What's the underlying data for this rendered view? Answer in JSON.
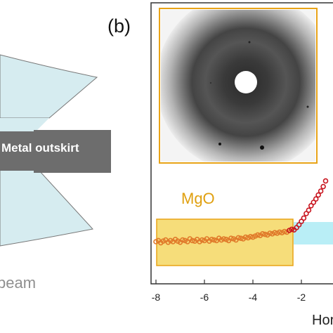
{
  "panel_label": "(b)",
  "left_panel": {
    "beam_label": "beam",
    "outskirt_label": "Metal outskirt"
  },
  "colors": {
    "beam_fill": "#d6ecf0",
    "arrow_fill": "#6d6d6d",
    "frame_color": "#e8a317",
    "mgo_box_fill": "#f3d24e",
    "mgo_label_color": "#e0a010",
    "data_early": "#e07a2a",
    "data_late": "#c8141e",
    "cyan_band": "#b9eef6"
  },
  "inset": {
    "description_icon": "diffraction-pattern-image"
  },
  "chart_data": {
    "type": "scatter",
    "xlabel": "Horiz",
    "ylabel": "",
    "xlim": [
      -8.1,
      -0.3
    ],
    "xticks": [
      -8,
      -6,
      -4,
      -2
    ],
    "tick_labels": [
      "-8",
      "-6",
      "-4",
      "-2"
    ],
    "region_label": "MgO",
    "region_x": [
      -8,
      -2.6
    ],
    "series": [
      {
        "x": [
          -8.0,
          -7.9,
          -7.8,
          -7.7,
          -7.6,
          -7.5,
          -7.4,
          -7.3,
          -7.2,
          -7.1,
          -7.0,
          -6.9,
          -6.8,
          -6.7,
          -6.6,
          -6.5,
          -6.4,
          -6.3,
          -6.2,
          -6.1,
          -6.0,
          -5.9,
          -5.8,
          -5.7,
          -5.6,
          -5.5,
          -5.4,
          -5.3,
          -5.2,
          -5.1,
          -5.0,
          -4.9,
          -4.8,
          -4.7,
          -4.6,
          -4.5,
          -4.4,
          -4.3,
          -4.2,
          -4.1,
          -4.0,
          -3.9,
          -3.8,
          -3.7,
          -3.6,
          -3.5,
          -3.4,
          -3.3,
          -3.2,
          -3.1,
          -3.0,
          -2.9,
          -2.8,
          -2.7,
          -2.6,
          -2.5,
          -2.4,
          -2.3,
          -2.2,
          -2.1,
          -2.0,
          -1.9,
          -1.8,
          -1.7,
          -1.6,
          -1.5,
          -1.4,
          -1.3,
          -1.2,
          -1.1,
          -1.0
        ],
        "y": [
          0.1,
          0.12,
          0.08,
          0.11,
          0.13,
          0.09,
          0.12,
          0.1,
          0.14,
          0.11,
          0.09,
          0.13,
          0.12,
          0.1,
          0.15,
          0.12,
          0.11,
          0.14,
          0.1,
          0.13,
          0.12,
          0.15,
          0.11,
          0.14,
          0.13,
          0.12,
          0.16,
          0.13,
          0.15,
          0.14,
          0.12,
          0.16,
          0.15,
          0.13,
          0.17,
          0.16,
          0.15,
          0.18,
          0.17,
          0.19,
          0.18,
          0.2,
          0.22,
          0.21,
          0.24,
          0.23,
          0.22,
          0.25,
          0.24,
          0.26,
          0.25,
          0.27,
          0.26,
          0.28,
          0.27,
          0.3,
          0.32,
          0.31,
          0.35,
          0.4,
          0.46,
          0.52,
          0.6,
          0.66,
          0.74,
          0.8,
          0.86,
          0.93,
          1.0,
          1.08,
          1.18
        ]
      }
    ]
  }
}
